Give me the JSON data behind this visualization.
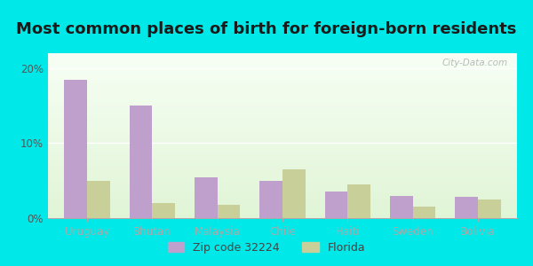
{
  "title": "Most common places of birth for foreign-born residents",
  "categories": [
    "Uruguay",
    "Bhutan",
    "Malaysia",
    "Chile",
    "Haiti",
    "Sweden",
    "Bolivia"
  ],
  "zip_values": [
    18.5,
    15.0,
    5.5,
    5.0,
    3.5,
    3.0,
    2.8
  ],
  "fl_values": [
    5.0,
    2.0,
    1.8,
    6.5,
    4.5,
    1.5,
    2.5
  ],
  "zip_color": "#bf9fcc",
  "fl_color": "#c8cf98",
  "background_outer": "#00e8e8",
  "background_inner_top": "#f0f8ee",
  "background_inner_bottom": "#d8efd0",
  "yticks": [
    0,
    10,
    20
  ],
  "ylim": [
    0,
    22
  ],
  "legend_zip": "Zip code 32224",
  "legend_fl": "Florida",
  "watermark": "City-Data.com",
  "title_fontsize": 13,
  "tick_fontsize": 8.5,
  "legend_fontsize": 9,
  "bar_width": 0.35
}
